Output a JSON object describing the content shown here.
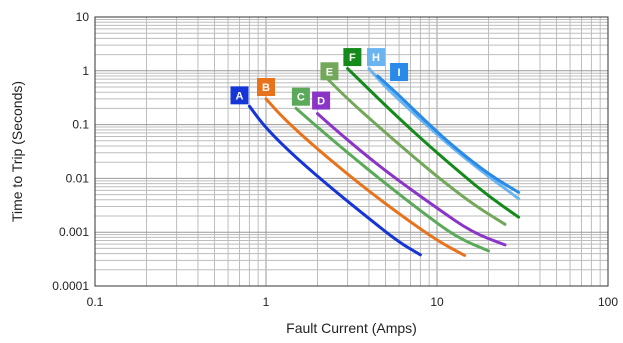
{
  "chart_data": {
    "type": "line",
    "title": "",
    "xlabel": "Fault Current (Amps)",
    "ylabel": "Time to Trip (Seconds)",
    "x_scale": "log",
    "y_scale": "log",
    "xlim": [
      0.1,
      100
    ],
    "ylim": [
      0.0001,
      10
    ],
    "grid": true,
    "x_ticks": [
      "0.1",
      "1",
      "10",
      "100"
    ],
    "y_ticks": [
      "0.0001",
      "0.001",
      "0.01",
      "0.1",
      "1",
      "10"
    ],
    "series": [
      {
        "name": "A",
        "color": "#1535d6",
        "x": [
          0.8,
          1.0,
          1.5,
          2.5,
          4.0,
          6.0,
          8.0
        ],
        "y": [
          0.22,
          0.085,
          0.024,
          0.006,
          0.0018,
          0.00065,
          0.00038
        ]
      },
      {
        "name": "B",
        "color": "#e8731c",
        "x": [
          1.0,
          1.3,
          2.0,
          3.5,
          6.0,
          10.0,
          14.5
        ],
        "y": [
          0.3,
          0.12,
          0.035,
          0.008,
          0.0022,
          0.0007,
          0.00037
        ]
      },
      {
        "name": "C",
        "color": "#5aaa5a",
        "x": [
          1.5,
          2.0,
          3.0,
          5.0,
          8.0,
          13.0,
          20.0
        ],
        "y": [
          0.2,
          0.09,
          0.03,
          0.008,
          0.0025,
          0.0008,
          0.00045
        ]
      },
      {
        "name": "D",
        "color": "#8b35c8",
        "x": [
          2.0,
          2.5,
          4.0,
          6.0,
          10.0,
          16.0,
          25.0
        ],
        "y": [
          0.16,
          0.085,
          0.024,
          0.009,
          0.0028,
          0.001,
          0.00058
        ]
      },
      {
        "name": "E",
        "color": "#73a85a",
        "x": [
          2.2,
          3.0,
          4.5,
          7.0,
          11.0,
          17.0,
          25.0
        ],
        "y": [
          0.8,
          0.3,
          0.095,
          0.028,
          0.0085,
          0.003,
          0.0014
        ]
      },
      {
        "name": "F",
        "color": "#138a1a",
        "x": [
          3.0,
          4.0,
          6.0,
          9.0,
          14.0,
          20.0,
          30.0
        ],
        "y": [
          1.1,
          0.45,
          0.13,
          0.04,
          0.012,
          0.0047,
          0.0019
        ]
      },
      {
        "name": "H",
        "color": "#6ab5f0",
        "x": [
          4.0,
          5.0,
          7.5,
          11.0,
          17.0,
          30.0
        ],
        "y": [
          1.1,
          0.5,
          0.15,
          0.05,
          0.016,
          0.0042
        ]
      },
      {
        "name": "I",
        "color": "#2a8ae8",
        "x": [
          4.5,
          6.0,
          9.0,
          13.0,
          20.0,
          30.0
        ],
        "y": [
          0.8,
          0.35,
          0.1,
          0.035,
          0.012,
          0.0055
        ]
      }
    ],
    "labels": [
      {
        "text": "A",
        "color": "#1535d6",
        "x": 0.7,
        "y": 0.35
      },
      {
        "text": "B",
        "color": "#e8731c",
        "x": 1.0,
        "y": 0.5
      },
      {
        "text": "C",
        "color": "#5aaa5a",
        "x": 1.6,
        "y": 0.33
      },
      {
        "text": "D",
        "color": "#8b35c8",
        "x": 2.1,
        "y": 0.28
      },
      {
        "text": "E",
        "color": "#73a85a",
        "x": 2.35,
        "y": 0.98
      },
      {
        "text": "F",
        "color": "#138a1a",
        "x": 3.2,
        "y": 1.8
      },
      {
        "text": "H",
        "color": "#6ab5f0",
        "x": 4.4,
        "y": 1.8
      },
      {
        "text": "I",
        "color": "#2a8ae8",
        "x": 6.0,
        "y": 0.95
      }
    ]
  }
}
